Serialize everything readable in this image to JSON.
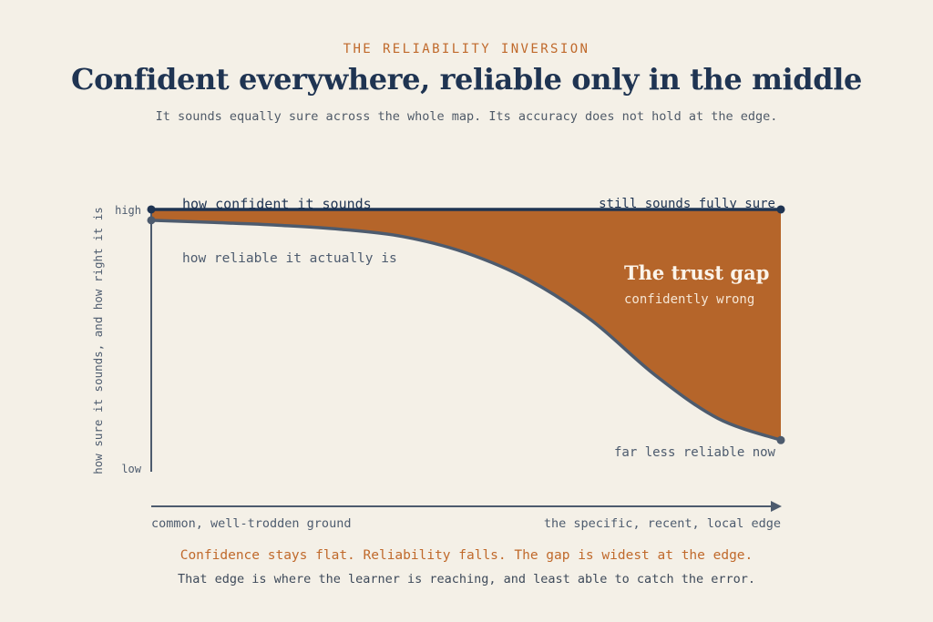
{
  "header": {
    "kicker": "THE RELIABILITY INVERSION",
    "title": "Confident everywhere, reliable only in the middle",
    "subtitle": "It sounds equally sure across the whole map. Its accuracy does not hold at the edge."
  },
  "footer": {
    "line1": "Confidence stays flat. Reliability falls. The gap is widest at the edge.",
    "line2": "That edge is where the learner is reaching, and least able to catch the error."
  },
  "colors": {
    "background": "#f4f0e7",
    "confidence": "#1f3452",
    "reliability": "#4d5b6e",
    "gap_fill": "#b5652a",
    "accent": "#c0692b"
  },
  "chart_data": {
    "type": "area",
    "ylabel": "how sure it sounds, and how right it is",
    "y_ticks": [
      "high",
      "low"
    ],
    "x_ticks": [
      "common, well-trodden ground",
      "the specific, recent, local edge"
    ],
    "x": [
      0,
      0.1,
      0.2,
      0.3,
      0.4,
      0.5,
      0.6,
      0.7,
      0.8,
      0.9,
      1.0
    ],
    "ylim": [
      0,
      1
    ],
    "series": [
      {
        "name": "how confident it sounds",
        "values": [
          0.98,
          0.98,
          0.98,
          0.98,
          0.98,
          0.98,
          0.98,
          0.98,
          0.98,
          0.98,
          0.98
        ]
      },
      {
        "name": "how reliable it actually is",
        "values": [
          0.94,
          0.932,
          0.922,
          0.907,
          0.88,
          0.82,
          0.72,
          0.57,
          0.37,
          0.21,
          0.13
        ]
      }
    ],
    "annotations": {
      "confidence_end": "still sounds fully sure",
      "reliability_end": "far less reliable now",
      "gap_title": "The trust gap",
      "gap_subtitle": "confidently wrong"
    },
    "grid": false,
    "legend": "none"
  }
}
